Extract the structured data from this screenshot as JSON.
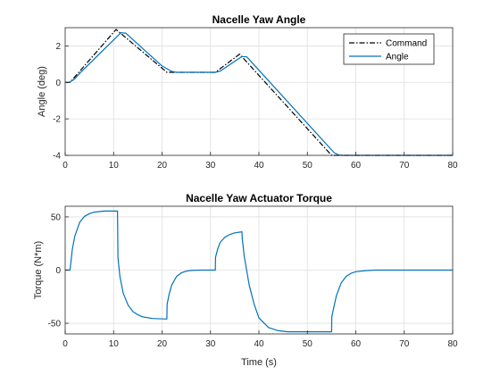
{
  "chart_data": [
    {
      "type": "line",
      "title": "Nacelle Yaw Angle",
      "xlabel": "",
      "ylabel": "Angle (deg)",
      "xlim": [
        0,
        80
      ],
      "ylim": [
        -4,
        3
      ],
      "xticks": [
        0,
        10,
        20,
        30,
        40,
        50,
        60,
        70,
        80
      ],
      "yticks": [
        -4,
        -2,
        0,
        2
      ],
      "grid": true,
      "legend": "top-right",
      "series": [
        {
          "name": "Command",
          "style": "dashdot",
          "color": "#000000",
          "x": [
            0,
            1,
            10.5,
            21,
            31,
            36,
            55,
            80
          ],
          "y": [
            0,
            0,
            2.9,
            0.55,
            0.55,
            1.55,
            -4.0,
            -4.0
          ]
        },
        {
          "name": "Angle",
          "style": "solid",
          "color": "#0072BD",
          "x": [
            0,
            1,
            2,
            3,
            11.5,
            12.5,
            20,
            22,
            23,
            31,
            32,
            36.5,
            37.5,
            55.5,
            56.5,
            57.5,
            80
          ],
          "y": [
            0,
            0.02,
            0.2,
            0.5,
            2.72,
            2.7,
            0.9,
            0.6,
            0.55,
            0.55,
            0.62,
            1.42,
            1.4,
            -3.85,
            -3.98,
            -4.0,
            -4.0
          ]
        }
      ]
    },
    {
      "type": "line",
      "title": "Nacelle Yaw Actuator Torque",
      "xlabel": "Time (s)",
      "ylabel": "Torque (N*m)",
      "xlim": [
        0,
        80
      ],
      "ylim": [
        -60,
        60
      ],
      "xticks": [
        0,
        10,
        20,
        30,
        40,
        50,
        60,
        70,
        80
      ],
      "yticks": [
        -50,
        0,
        50
      ],
      "grid": true,
      "series": [
        {
          "name": "",
          "style": "solid",
          "color": "#0072BD",
          "x": [
            0,
            1,
            1.5,
            2,
            3,
            4,
            5,
            6,
            7,
            8,
            10.8,
            10.9,
            11.3,
            12,
            13,
            14,
            15,
            16,
            18,
            21,
            21.05,
            21.5,
            22,
            23,
            24,
            25,
            26,
            28,
            31,
            31.05,
            31.5,
            32,
            33,
            34,
            35,
            36.5,
            36.55,
            37,
            38,
            39,
            40,
            42,
            44,
            46,
            55,
            55.05,
            55.5,
            56,
            57,
            58,
            59,
            60,
            62,
            64,
            80
          ],
          "y": [
            0,
            0,
            20,
            32,
            45,
            50.5,
            53,
            54.5,
            55,
            55.5,
            55.5,
            12,
            -6,
            -22,
            -33,
            -39,
            -42,
            -44,
            -45.5,
            -46,
            -32,
            -22,
            -14,
            -6,
            -2.5,
            -1,
            -0.3,
            0,
            0,
            12,
            20,
            26,
            31,
            33.5,
            35,
            36,
            30,
            12,
            -14,
            -32,
            -45,
            -54,
            -57,
            -58,
            -58,
            -44,
            -34,
            -24,
            -12,
            -6,
            -3,
            -1.5,
            -0.5,
            0,
            0
          ]
        }
      ]
    }
  ]
}
